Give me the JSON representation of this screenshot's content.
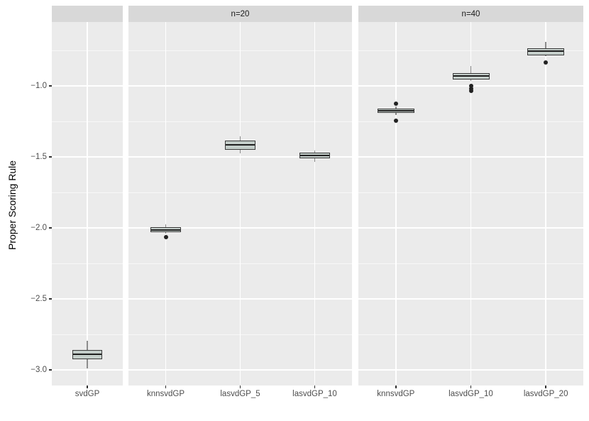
{
  "figure": {
    "y_axis_title": "Proper Scoring Rule",
    "colors": {
      "panel_bg": "#EBEBEB",
      "strip_bg": "#D8D8D8",
      "grid": "#FFFFFF",
      "box_fill": "#C4CECA",
      "box_border": "#3A3A3A",
      "median": "#1F1F1F",
      "whisker": "#8C8C8C",
      "outlier": "#222222",
      "axis_text": "#4D4D4D",
      "strip_text": "#1A1A1A",
      "tick_mark": "#333333"
    }
  },
  "chart_data": {
    "type": "boxplot",
    "title": "",
    "xlabel": "",
    "ylabel": "Proper Scoring Rule",
    "ylim": [
      -3.11,
      -0.55
    ],
    "yticks": [
      -1.0,
      -1.5,
      -2.0,
      -2.5,
      -3.0
    ],
    "ytick_labels": [
      "−1.0",
      "−1.5",
      "−2.0",
      "−2.5",
      "−3.0"
    ],
    "yticks_minor": [
      -0.75,
      -1.25,
      -1.75,
      -2.25,
      -2.75
    ],
    "grid": "on",
    "legend_position": "none",
    "facets": [
      {
        "label": "",
        "categories": [
          {
            "name": "svdGP",
            "lo": -2.99,
            "q1": -2.925,
            "median": -2.89,
            "q3": -2.86,
            "hi": -2.795,
            "outliers": []
          }
        ]
      },
      {
        "label": "n=20",
        "categories": [
          {
            "name": "knnsvdGP",
            "lo": -2.04,
            "q1": -2.03,
            "median": -2.013,
            "q3": -1.996,
            "hi": -1.974,
            "outliers": [
              -2.066
            ]
          },
          {
            "name": "lasvdGP_5",
            "lo": -1.475,
            "q1": -1.45,
            "median": -1.415,
            "q3": -1.385,
            "hi": -1.355,
            "outliers": []
          },
          {
            "name": "lasvdGP_10",
            "lo": -1.535,
            "q1": -1.51,
            "median": -1.49,
            "q3": -1.47,
            "hi": -1.455,
            "outliers": []
          }
        ]
      },
      {
        "label": "n=40",
        "categories": [
          {
            "name": "knnsvdGP",
            "lo": -1.205,
            "q1": -1.19,
            "median": -1.175,
            "q3": -1.158,
            "hi": -1.145,
            "outliers": [
              -1.125,
              -1.245
            ]
          },
          {
            "name": "lasvdGP_10",
            "lo": -0.965,
            "q1": -0.955,
            "median": -0.93,
            "q3": -0.908,
            "hi": -0.862,
            "outliers": [
              -1.0,
              -1.018,
              -1.035
            ]
          },
          {
            "name": "lasvdGP_20",
            "lo": -0.792,
            "q1": -0.785,
            "median": -0.757,
            "q3": -0.734,
            "hi": -0.688,
            "outliers": [
              -0.835
            ]
          }
        ]
      }
    ]
  }
}
